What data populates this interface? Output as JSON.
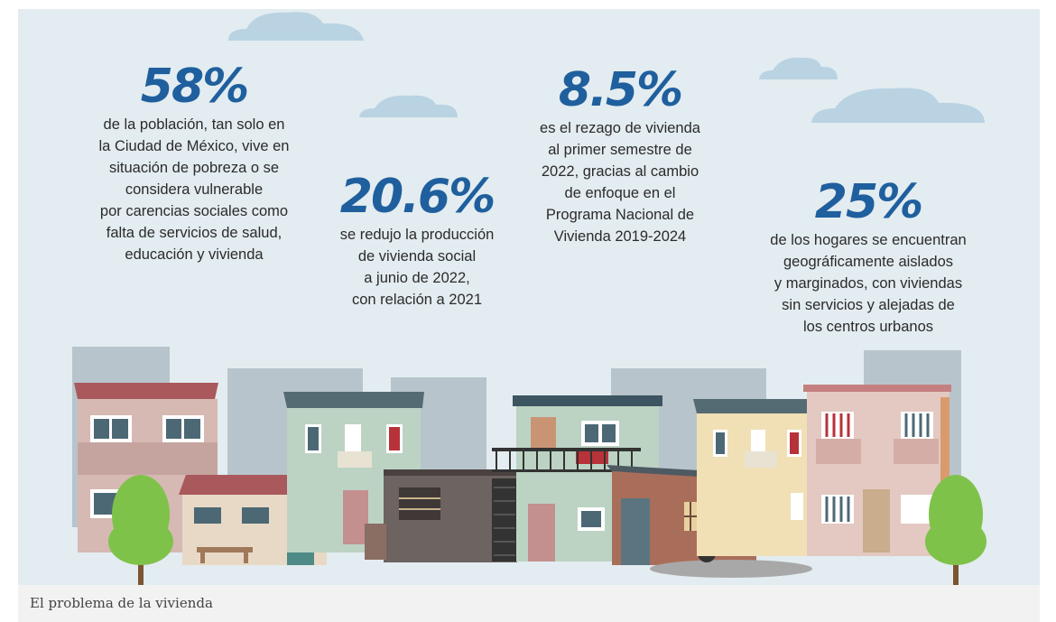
{
  "stats": [
    {
      "value": "58%",
      "lines": [
        "de la población, tan solo en",
        "la Ciudad de México, vive en",
        "situación de pobreza o se",
        "considera vulnerable",
        "por carencias sociales como",
        "falta de servicios de salud,",
        "educación y vivienda"
      ]
    },
    {
      "value": "20.6%",
      "lines": [
        "se redujo la producción",
        "de vivienda social",
        "a junio de 2022,",
        "con relación a 2021"
      ]
    },
    {
      "value": "8.5%",
      "lines": [
        "es el rezago de vivienda",
        "al primer semestre de",
        "2022, gracias al cambio",
        "de enfoque en el",
        "Programa Nacional de",
        "Vivienda 2019-2024"
      ]
    },
    {
      "value": "25%",
      "lines": [
        "de los hogares se encuentran",
        "geográficamente aislados",
        "y marginados, con viviendas",
        "sin servicios y alejadas de",
        "los centros urbanos"
      ]
    }
  ],
  "caption": "El problema de la vivienda",
  "colors": {
    "accent": "#1f5f9e",
    "background": "#e3ecf0"
  }
}
